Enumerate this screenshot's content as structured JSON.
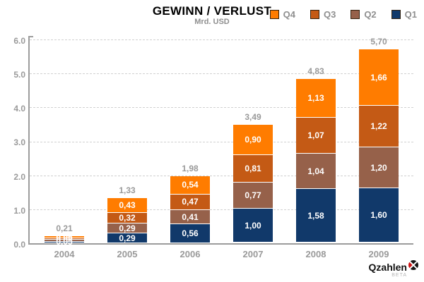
{
  "header": {
    "title": "GEWINN / VERLUST",
    "subtitle": "Mrd. USD"
  },
  "legend": {
    "items": [
      {
        "id": "q4",
        "label": "Q4",
        "color": "#FF7C00"
      },
      {
        "id": "q3",
        "label": "Q3",
        "color": "#C45A15"
      },
      {
        "id": "q2",
        "label": "Q2",
        "color": "#96614A"
      },
      {
        "id": "q1",
        "label": "Q1",
        "color": "#11396A"
      }
    ]
  },
  "chart_data": {
    "type": "bar",
    "stacked": true,
    "title": "GEWINN / VERLUST",
    "subtitle": "Mrd. USD",
    "unit": "Mrd. USD",
    "categories": [
      "2004",
      "2005",
      "2006",
      "2007",
      "2008",
      "2009"
    ],
    "series": [
      {
        "name": "Q1",
        "color": "#11396A",
        "values": [
          0.05,
          0.29,
          0.56,
          1.0,
          1.58,
          1.6
        ]
      },
      {
        "name": "Q2",
        "color": "#96614A",
        "values": [
          0.05,
          0.29,
          0.41,
          0.77,
          1.04,
          1.2
        ]
      },
      {
        "name": "Q3",
        "color": "#C45A15",
        "values": [
          0.05,
          0.32,
          0.47,
          0.81,
          1.07,
          1.22
        ]
      },
      {
        "name": "Q4",
        "color": "#FF7C00",
        "values": [
          0.06,
          0.43,
          0.54,
          0.9,
          1.13,
          1.66
        ]
      }
    ],
    "totals": [
      0.21,
      1.33,
      1.98,
      3.49,
      4.83,
      5.7
    ],
    "ylim": [
      0.0,
      6.0
    ],
    "yticks": [
      "0.0",
      "1.0",
      "2.0",
      "3.0",
      "4.0",
      "5.0",
      "6.0"
    ],
    "grid": "dashed-horizontal",
    "legend_position": "top-right",
    "decimal_separator": ","
  },
  "branding": {
    "name": "Qzahlen",
    "beta": "BETA"
  }
}
